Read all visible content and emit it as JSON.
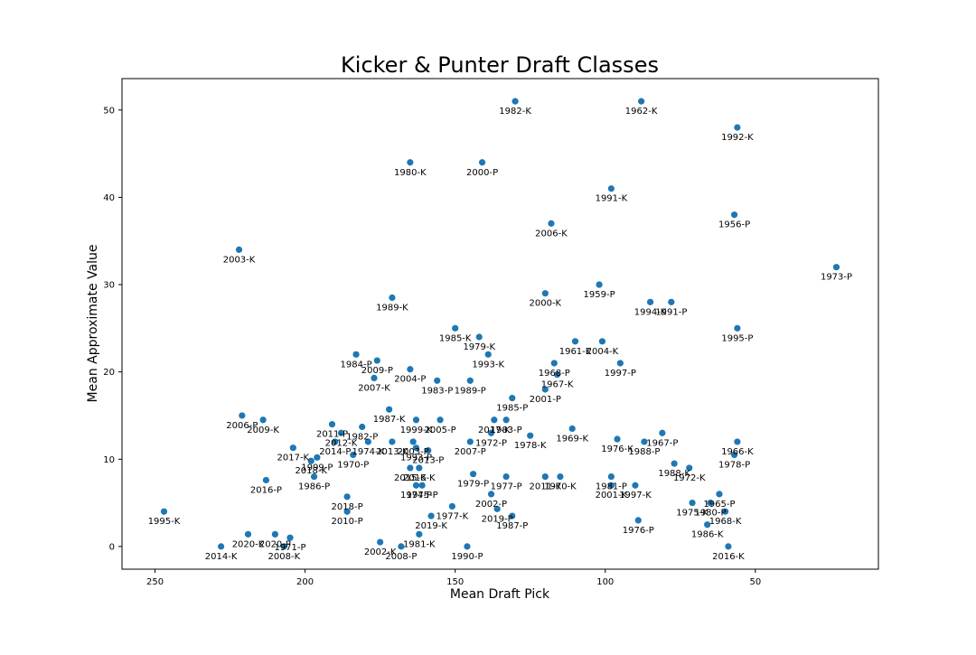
{
  "chart_data": {
    "type": "scatter",
    "title": "Kicker & Punter Draft Classes",
    "xlabel": "Mean Draft Pick",
    "ylabel": "Mean Approximate Value",
    "xlim": [
      261,
      9
    ],
    "ylim": [
      -2.6,
      53.6
    ],
    "x_inverted": true,
    "x_ticks": [
      250,
      200,
      150,
      100,
      50
    ],
    "y_ticks": [
      0,
      10,
      20,
      30,
      40,
      50
    ],
    "grid": false,
    "marker_color": "#1f77b4",
    "points": [
      {
        "x": 130,
        "y": 51,
        "label": "1982-K"
      },
      {
        "x": 88,
        "y": 51,
        "label": "1962-K"
      },
      {
        "x": 56,
        "y": 48,
        "label": "1992-K"
      },
      {
        "x": 165,
        "y": 44,
        "label": "1980-K"
      },
      {
        "x": 141,
        "y": 44,
        "label": "2000-P"
      },
      {
        "x": 98,
        "y": 41,
        "label": "1991-K"
      },
      {
        "x": 57,
        "y": 38,
        "label": "1956-P"
      },
      {
        "x": 118,
        "y": 37,
        "label": "2006-K"
      },
      {
        "x": 222,
        "y": 34,
        "label": "2003-K"
      },
      {
        "x": 23,
        "y": 32,
        "label": "1973-P"
      },
      {
        "x": 102,
        "y": 30,
        "label": "1959-P"
      },
      {
        "x": 120,
        "y": 29,
        "label": "2000-K"
      },
      {
        "x": 171,
        "y": 28.5,
        "label": "1989-K"
      },
      {
        "x": 85,
        "y": 28,
        "label": "1994-K"
      },
      {
        "x": 78,
        "y": 28,
        "label": "1991-P"
      },
      {
        "x": 150,
        "y": 25,
        "label": "1985-K"
      },
      {
        "x": 56,
        "y": 25,
        "label": "1995-P"
      },
      {
        "x": 142,
        "y": 24,
        "label": "1979-K"
      },
      {
        "x": 110,
        "y": 23.5,
        "label": "1961-K"
      },
      {
        "x": 101,
        "y": 23.5,
        "label": "2004-K"
      },
      {
        "x": 183,
        "y": 22,
        "label": "1984-P"
      },
      {
        "x": 139,
        "y": 22,
        "label": "1993-K"
      },
      {
        "x": 176,
        "y": 21.3,
        "label": "2009-P"
      },
      {
        "x": 117,
        "y": 21,
        "label": "1968-P"
      },
      {
        "x": 95,
        "y": 21,
        "label": "1997-P"
      },
      {
        "x": 165,
        "y": 20.3,
        "label": "2004-P"
      },
      {
        "x": 116,
        "y": 19.7,
        "label": "1967-K"
      },
      {
        "x": 177,
        "y": 19.3,
        "label": "2007-K"
      },
      {
        "x": 156,
        "y": 19,
        "label": "1983-P"
      },
      {
        "x": 145,
        "y": 19,
        "label": "1989-P"
      },
      {
        "x": 120,
        "y": 18,
        "label": "2001-P"
      },
      {
        "x": 131,
        "y": 17,
        "label": "1985-P"
      },
      {
        "x": 172,
        "y": 15.7,
        "label": "1987-K"
      },
      {
        "x": 221,
        "y": 15,
        "label": "2006-P"
      },
      {
        "x": 214,
        "y": 14.5,
        "label": "2009-K"
      },
      {
        "x": 163,
        "y": 14.5,
        "label": "1999-K"
      },
      {
        "x": 155,
        "y": 14.5,
        "label": "2005-P"
      },
      {
        "x": 137,
        "y": 14.5,
        "label": "2017-K"
      },
      {
        "x": 133,
        "y": 14.5,
        "label": "1983-P"
      },
      {
        "x": 191,
        "y": 14,
        "label": "2011-P"
      },
      {
        "x": 181,
        "y": 13.7,
        "label": "1982-P"
      },
      {
        "x": 111,
        "y": 13.5,
        "label": "1969-K"
      },
      {
        "x": 188,
        "y": 13,
        "label": "2012-K"
      },
      {
        "x": 138,
        "y": 13,
        "label": "1972-P"
      },
      {
        "x": 81,
        "y": 13,
        "label": "1967-P"
      },
      {
        "x": 125,
        "y": 12.7,
        "label": "1978-K"
      },
      {
        "x": 96,
        "y": 12.3,
        "label": "1976-K"
      },
      {
        "x": 190,
        "y": 12,
        "label": "2014-P"
      },
      {
        "x": 179,
        "y": 12,
        "label": "1974-K"
      },
      {
        "x": 171,
        "y": 12,
        "label": "2013-K"
      },
      {
        "x": 164,
        "y": 12,
        "label": "2003-P"
      },
      {
        "x": 145,
        "y": 12,
        "label": "2007-P"
      },
      {
        "x": 87,
        "y": 12,
        "label": "1988-P"
      },
      {
        "x": 56,
        "y": 12,
        "label": "1966-K"
      },
      {
        "x": 204,
        "y": 11.3,
        "label": "2017-K"
      },
      {
        "x": 163,
        "y": 11.3,
        "label": "1993-P"
      },
      {
        "x": 159,
        "y": 11,
        "label": "2013-P"
      },
      {
        "x": 184,
        "y": 10.5,
        "label": "1970-P"
      },
      {
        "x": 57,
        "y": 10.5,
        "label": "1978-P"
      },
      {
        "x": 196,
        "y": 10.2,
        "label": "1999-P"
      },
      {
        "x": 198,
        "y": 9.8,
        "label": "2018-K"
      },
      {
        "x": 77,
        "y": 9.5,
        "label": "1988-K"
      },
      {
        "x": 72,
        "y": 9,
        "label": "1972-K"
      },
      {
        "x": 165,
        "y": 9,
        "label": "2015-K"
      },
      {
        "x": 162,
        "y": 9,
        "label": "2016-K"
      },
      {
        "x": 144,
        "y": 8.3,
        "label": "1979-P"
      },
      {
        "x": 133,
        "y": 8,
        "label": "1977-P"
      },
      {
        "x": 120,
        "y": 8,
        "label": "2011-K"
      },
      {
        "x": 115,
        "y": 8,
        "label": "1970-K"
      },
      {
        "x": 98,
        "y": 8,
        "label": "1981-P"
      },
      {
        "x": 197,
        "y": 8,
        "label": "1986-P"
      },
      {
        "x": 213,
        "y": 7.6,
        "label": "2016-P"
      },
      {
        "x": 163,
        "y": 7,
        "label": "1974-P"
      },
      {
        "x": 161,
        "y": 7,
        "label": "1975-P"
      },
      {
        "x": 98,
        "y": 7,
        "label": "2001-K"
      },
      {
        "x": 90,
        "y": 7,
        "label": "1997-K"
      },
      {
        "x": 186,
        "y": 5.7,
        "label": "2018-P"
      },
      {
        "x": 138,
        "y": 6,
        "label": "2002-P"
      },
      {
        "x": 62,
        "y": 6,
        "label": "1965-P"
      },
      {
        "x": 71,
        "y": 5,
        "label": "1975-K"
      },
      {
        "x": 65,
        "y": 5,
        "label": "1980-P"
      },
      {
        "x": 151,
        "y": 4.6,
        "label": "1977-K"
      },
      {
        "x": 136,
        "y": 4.3,
        "label": "2019-P"
      },
      {
        "x": 247,
        "y": 4,
        "label": "1995-K"
      },
      {
        "x": 186,
        "y": 4,
        "label": "2010-P"
      },
      {
        "x": 60,
        "y": 4,
        "label": "1968-K"
      },
      {
        "x": 158,
        "y": 3.5,
        "label": "2019-K"
      },
      {
        "x": 131,
        "y": 3.5,
        "label": "1987-P"
      },
      {
        "x": 89,
        "y": 3,
        "label": "1976-P"
      },
      {
        "x": 66,
        "y": 2.5,
        "label": "1986-K"
      },
      {
        "x": 219,
        "y": 1.4,
        "label": "2020-K"
      },
      {
        "x": 210,
        "y": 1.4,
        "label": "2020-P"
      },
      {
        "x": 162,
        "y": 1.4,
        "label": "1981-K"
      },
      {
        "x": 205,
        "y": 1,
        "label": "1971-P"
      },
      {
        "x": 175,
        "y": 0.5,
        "label": "2002-K"
      },
      {
        "x": 228,
        "y": 0,
        "label": "2014-K"
      },
      {
        "x": 207,
        "y": 0,
        "label": "2008-K"
      },
      {
        "x": 168,
        "y": 0,
        "label": "2008-P"
      },
      {
        "x": 146,
        "y": 0,
        "label": "1990-P"
      },
      {
        "x": 59,
        "y": 0,
        "label": "2016-K"
      }
    ]
  }
}
